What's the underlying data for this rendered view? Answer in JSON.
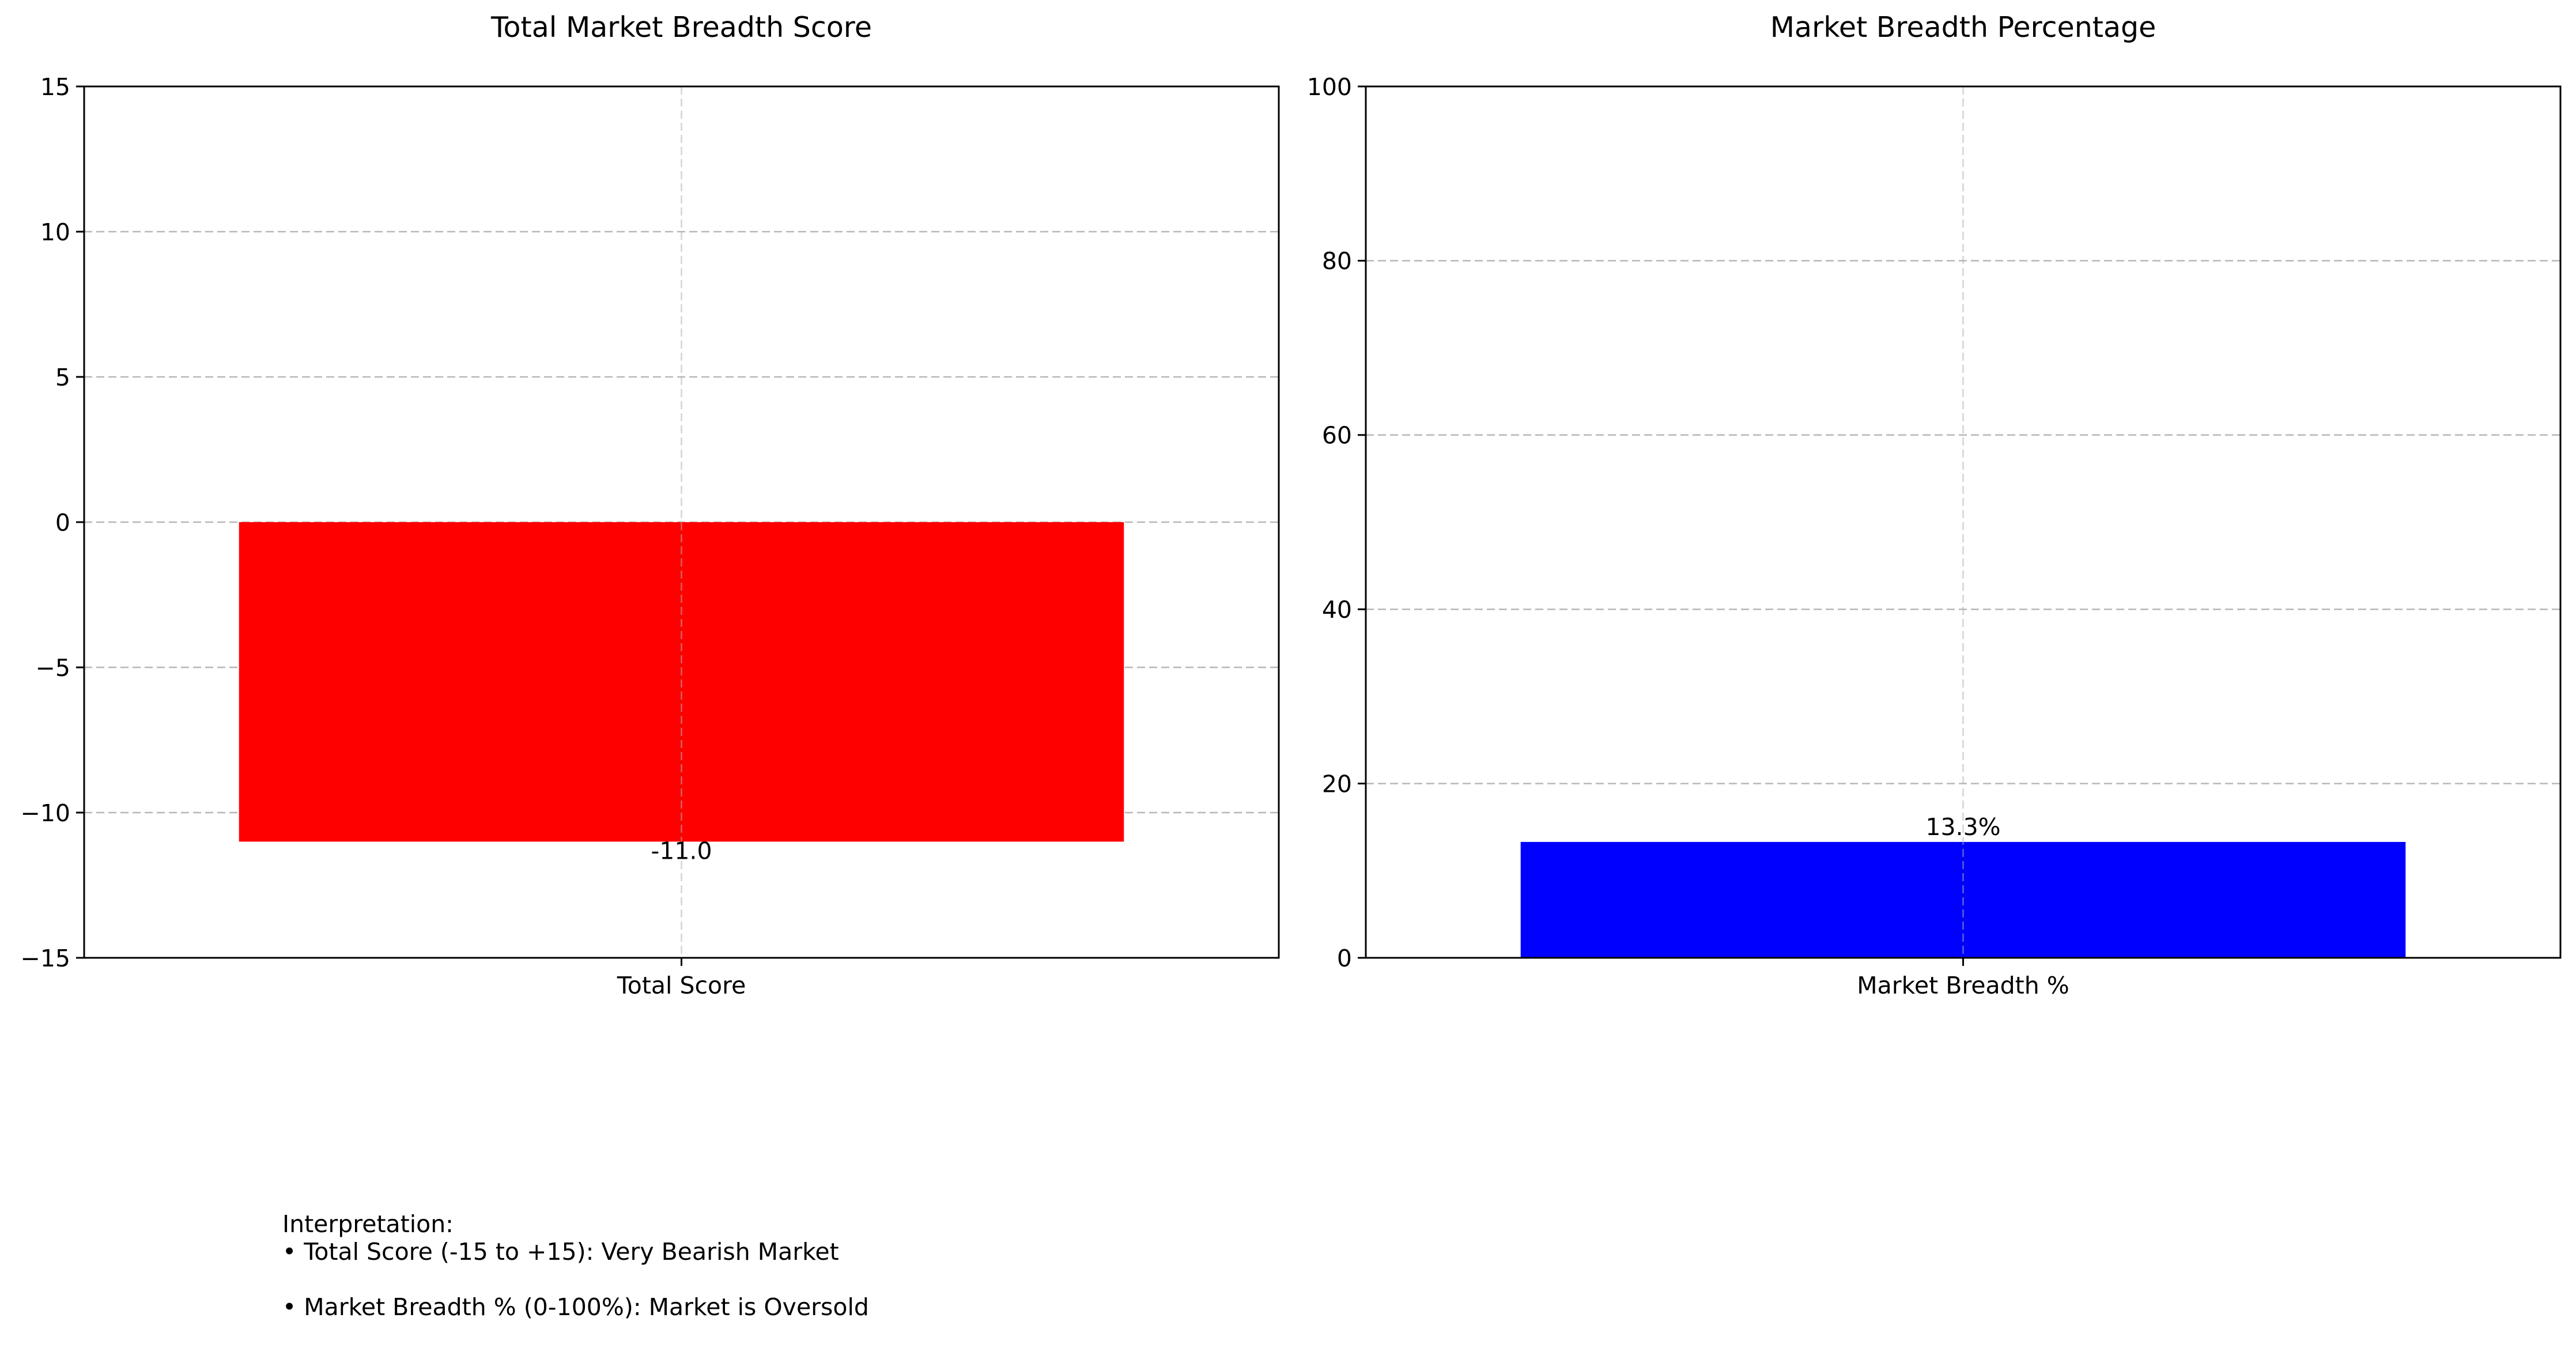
{
  "chart_data": [
    {
      "type": "bar",
      "title": "Total Market Breadth Score",
      "categories": [
        "Total Score"
      ],
      "values": [
        -11.0
      ],
      "value_labels": [
        "-11.0"
      ],
      "ylim": [
        -15,
        15
      ],
      "yticks": [
        -15,
        -10,
        -5,
        0,
        5,
        10,
        15
      ],
      "ytick_labels": [
        "−15",
        "−10",
        "−5",
        "0",
        "5",
        "10",
        "15"
      ],
      "bar_color": "#ff0000",
      "grid": true
    },
    {
      "type": "bar",
      "title": "Market Breadth Percentage",
      "categories": [
        "Market Breadth %"
      ],
      "values": [
        13.3
      ],
      "value_labels": [
        "13.3%"
      ],
      "ylim": [
        0,
        100
      ],
      "yticks": [
        0,
        20,
        40,
        60,
        80,
        100
      ],
      "ytick_labels": [
        "0",
        "20",
        "40",
        "60",
        "80",
        "100"
      ],
      "bar_color": "#0000ff",
      "grid": true
    }
  ],
  "interpretation": {
    "heading": "Interpretation:",
    "line1": "• Total Score (-15 to +15): Very Bearish Market",
    "line2": "• Market Breadth % (0-100%): Market is Oversold"
  }
}
